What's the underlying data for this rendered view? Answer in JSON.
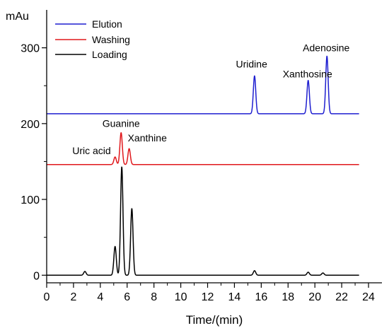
{
  "chart_data": {
    "type": "line",
    "xlabel": "Time/(min)",
    "ylabel": "mAu",
    "xlim": [
      0,
      25
    ],
    "ylim": [
      -10,
      350
    ],
    "x_ticks": [
      0,
      2,
      4,
      6,
      8,
      10,
      12,
      14,
      16,
      18,
      20,
      22,
      24
    ],
    "y_ticks": [
      0,
      100,
      200,
      300
    ],
    "grid": false,
    "legend_position": "top-left",
    "series": [
      {
        "name": "Elution",
        "color": "#1f1fd0",
        "baseline": 213,
        "peaks": [
          {
            "label": "Uridine",
            "x": 15.5,
            "y": 263
          },
          {
            "label": "Xanthosine",
            "x": 19.5,
            "y": 257
          },
          {
            "label": "Adenosine",
            "x": 20.9,
            "y": 289
          }
        ]
      },
      {
        "name": "Washing",
        "color": "#e0181c",
        "baseline": 146,
        "peaks": [
          {
            "label": "Uric acid",
            "x": 5.1,
            "y": 156
          },
          {
            "label": "Guanine",
            "x": 5.55,
            "y": 188
          },
          {
            "label": "Xanthine",
            "x": 6.15,
            "y": 167
          }
        ]
      },
      {
        "name": "Loading",
        "color": "#000000",
        "baseline": 0,
        "peaks": [
          {
            "x": 2.85,
            "y": 5
          },
          {
            "x": 5.1,
            "y": 38
          },
          {
            "x": 5.6,
            "y": 143
          },
          {
            "x": 6.35,
            "y": 88
          },
          {
            "x": 15.5,
            "y": 6
          },
          {
            "x": 19.5,
            "y": 4
          },
          {
            "x": 20.6,
            "y": 3
          }
        ]
      }
    ]
  }
}
